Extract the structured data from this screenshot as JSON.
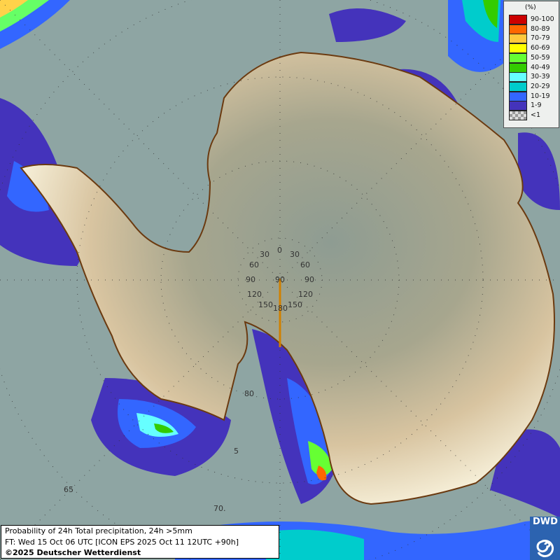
{
  "legend": {
    "unit": "(%)",
    "items": [
      {
        "label": "90-100",
        "color": "#cc0000"
      },
      {
        "label": "80-89",
        "color": "#ff6600"
      },
      {
        "label": "70-79",
        "color": "#ffc83c"
      },
      {
        "label": "60-69",
        "color": "#ffff00"
      },
      {
        "label": "50-59",
        "color": "#66ff33"
      },
      {
        "label": "40-49",
        "color": "#33cc00"
      },
      {
        "label": "30-39",
        "color": "#66ffff"
      },
      {
        "label": "20-29",
        "color": "#00cccc"
      },
      {
        "label": "10-19",
        "color": "#3366ff"
      },
      {
        "label": "1-9",
        "color": "#4433bb"
      },
      {
        "label": "<1",
        "color": "checker"
      }
    ]
  },
  "grid_labels": {
    "lon": [
      "0",
      "30",
      "30",
      "60",
      "60",
      "90",
      "90",
      "90",
      "120",
      "120",
      "150",
      "150",
      "180"
    ],
    "lat": [
      "80",
      "65",
      "70.",
      "5"
    ]
  },
  "info": {
    "line1": "Probability of 24h Total precipitation, 24h >5mm",
    "line2": "FT: Wed 15 Oct 06 UTC [ICON EPS 2025 Oct 11 12UTC +90h]",
    "line3": "©2025 Deutscher Wetterdienst"
  },
  "logo": "DWD",
  "colors": {
    "sea": "#8ea5a3",
    "coast": "#6b3a10",
    "ice_plateau": "#8f9f8f",
    "ice_edge": "#f3ead0"
  }
}
